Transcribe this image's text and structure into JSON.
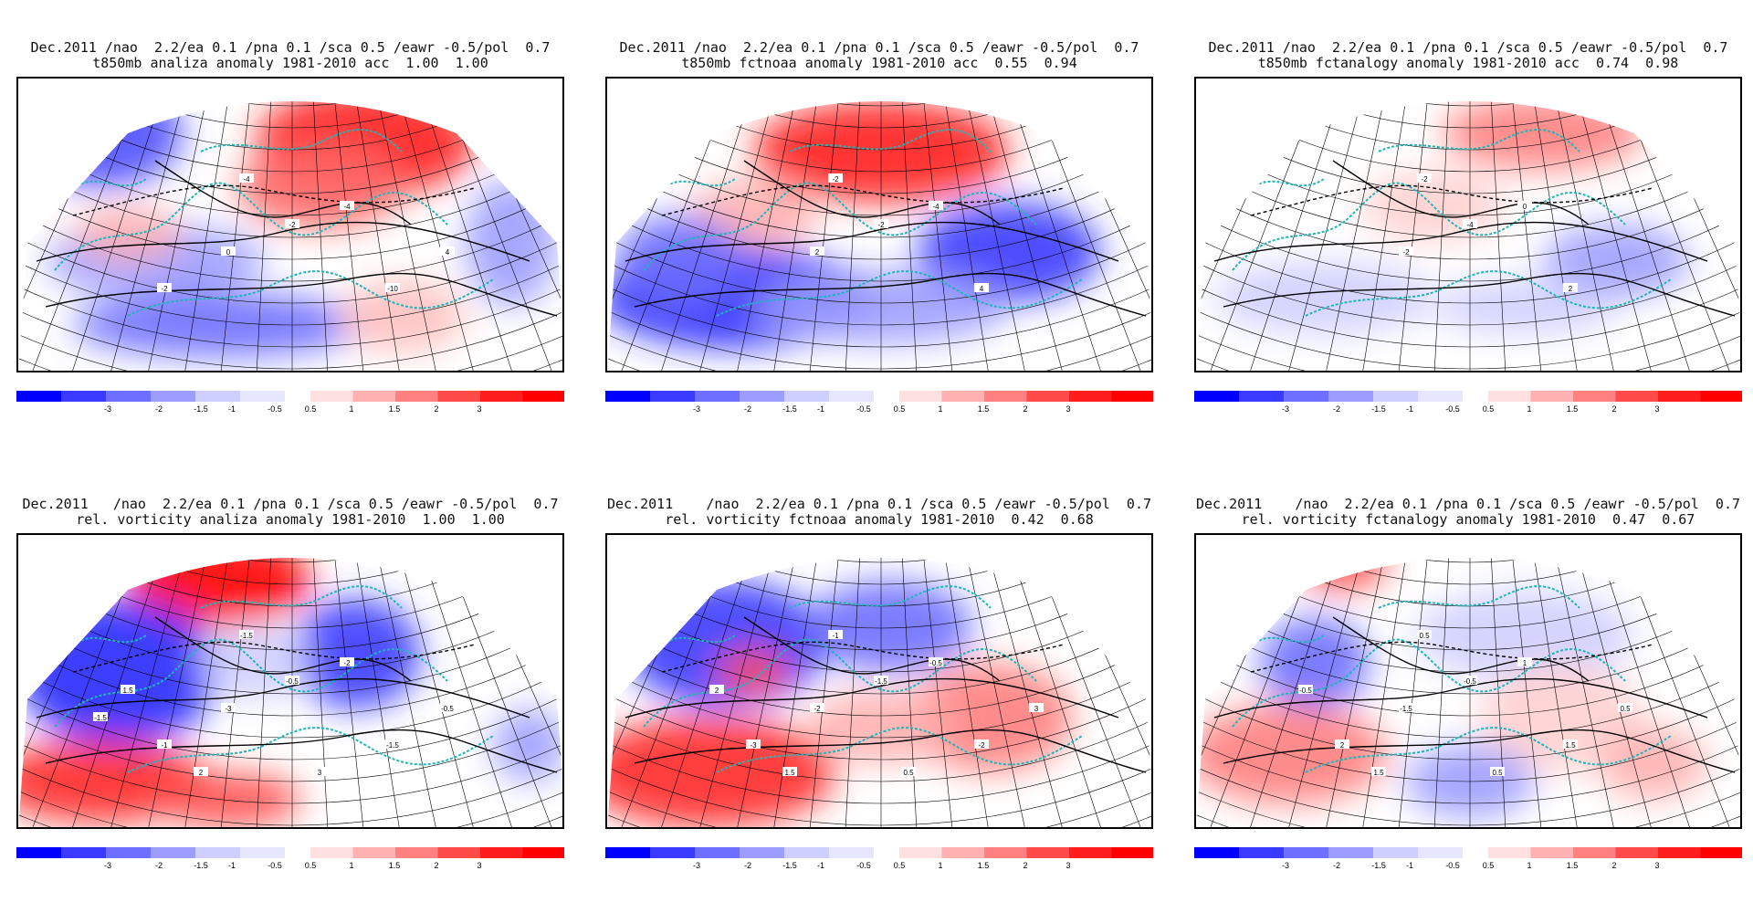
{
  "colorbar": {
    "labels": [
      "-3",
      "-2",
      "-1.5",
      "-1",
      "-0.5",
      "0.5",
      "1",
      "1.5",
      "2",
      "3"
    ],
    "colors": [
      "#0000ff",
      "#3b3bff",
      "#6e6eff",
      "#9d9dff",
      "#cfcfff",
      "#e6e6ff",
      "#ffe0e0",
      "#ffb0b0",
      "#ff8080",
      "#ff4a4a",
      "#ff1e1e",
      "#ff0000"
    ]
  },
  "panels": [
    {
      "title_line1": "Dec.2011 /nao  2.2/ea 0.1 /pna 0.1 /sca 0.5 /eawr -0.5/pol  0.7",
      "title_line2": "t850mb analiza anomaly 1981-2010 acc  1.00  1.00",
      "contour_labels": [
        "-4",
        "-2",
        "0",
        "-4",
        "-10",
        "-2",
        "4"
      ]
    },
    {
      "title_line1": "Dec.2011 /nao  2.2/ea 0.1 /pna 0.1 /sca 0.5 /eawr -0.5/pol  0.7",
      "title_line2": "t850mb fctnoaa anomaly 1981-2010 acc  0.55  0.94",
      "contour_labels": [
        "-2",
        "-2",
        "2",
        "-4",
        "4"
      ]
    },
    {
      "title_line1": "Dec.2011 /nao  2.2/ea 0.1 /pna 0.1 /sca 0.5 /eawr -0.5/pol  0.7",
      "title_line2": "t850mb fctanalogy anomaly 1981-2010 acc  0.74  0.98",
      "contour_labels": [
        "-2",
        "-4",
        "-2",
        "0",
        "2"
      ]
    },
    {
      "title_line1": "Dec.2011   /nao  2.2/ea 0.1 /pna 0.1 /sca 0.5 /eawr -0.5/pol  0.7",
      "title_line2": "rel. vorticity analiza anomaly 1981-2010  1.00  1.00",
      "contour_labels": [
        "-1.5",
        "-0.5",
        "-3",
        "-2",
        "-1.5",
        "-1",
        "-0.5",
        "1.5",
        "2",
        "3",
        "-1.5"
      ]
    },
    {
      "title_line1": "Dec.2011    /nao  2.2/ea 0.1 /pna 0.1 /sca 0.5 /eawr -0.5/pol  0.7",
      "title_line2": "rel. vorticity fctnoaa anomaly 1981-2010  0.42  0.68",
      "contour_labels": [
        "-1",
        "-1.5",
        "-2",
        "-0.5",
        "-2",
        "-3",
        "3",
        "2",
        "1.5",
        "0.5"
      ]
    },
    {
      "title_line1": "Dec.2011    /nao  2.2/ea 0.1 /pna 0.1 /sca 0.5 /eawr -0.5/pol  0.7",
      "title_line2": "rel. vorticity fctanalogy anomaly 1981-2010  0.47  0.67",
      "contour_labels": [
        "0.5",
        "-0.5",
        "-1.5",
        "1",
        "1.5",
        "2",
        "0.5",
        "-0.5",
        "1.5",
        "0.5"
      ]
    }
  ]
}
